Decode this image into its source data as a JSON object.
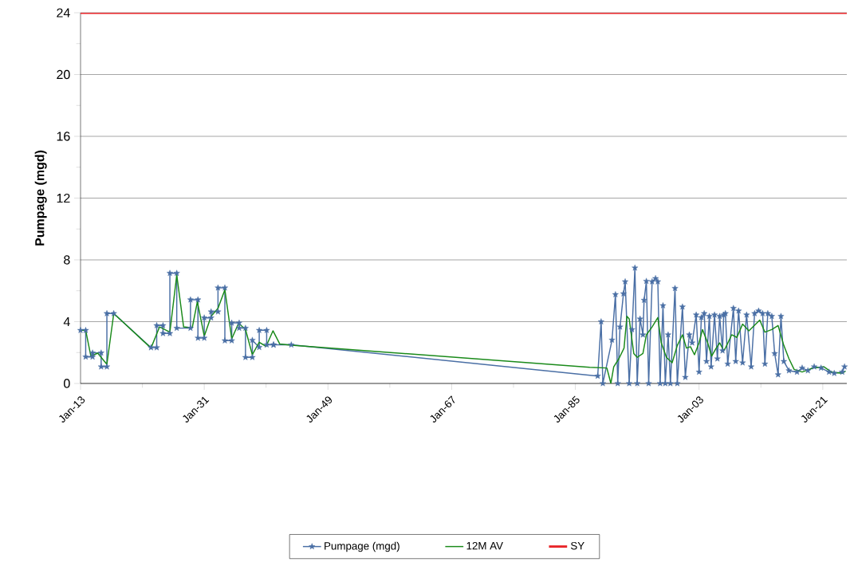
{
  "chart_data": {
    "type": "line",
    "ylabel": "Pumpage (mgd)",
    "xlim": [
      "1913-01",
      "2024-07"
    ],
    "ylim": [
      0,
      24
    ],
    "xticks": [
      {
        "value": "1913-01",
        "label": "Jan-13"
      },
      {
        "value": "1931-01",
        "label": "Jan-31"
      },
      {
        "value": "1949-01",
        "label": "Jan-49"
      },
      {
        "value": "1967-01",
        "label": "Jan-67"
      },
      {
        "value": "1985-01",
        "label": "Jan-85"
      },
      {
        "value": "2003-01",
        "label": "Jan-03"
      },
      {
        "value": "2021-01",
        "label": "Jan-21"
      }
    ],
    "yticks": [
      0,
      4,
      8,
      12,
      16,
      20,
      24
    ],
    "grid": "y",
    "legend": "bottom",
    "series": [
      {
        "name": "Pumpage (mgd)",
        "color": "#4a6fa5",
        "marker": "star",
        "x": [
          "1913-01",
          "1913-10",
          "1913-10",
          "1914-10",
          "1914-10",
          "1916-01",
          "1916-01",
          "1916-11",
          "1916-11",
          "1917-11",
          "1923-04",
          "1924-02",
          "1924-02",
          "1925-01",
          "1925-01",
          "1926-01",
          "1926-01",
          "1927-01",
          "1927-01",
          "1929-01",
          "1929-01",
          "1930-02",
          "1930-02",
          "1931-01",
          "1931-01",
          "1932-01",
          "1932-01",
          "1933-01",
          "1933-01",
          "1934-01",
          "1934-01",
          "1935-01",
          "1935-01",
          "1936-02",
          "1936-02",
          "1937-01",
          "1937-01",
          "1938-01",
          "1938-01",
          "1939-01",
          "1939-01",
          "1940-02",
          "1940-02",
          "1941-02",
          "1941-02",
          "1943-09",
          "1988-04",
          "1988-10",
          "1989-01",
          "1990-05",
          "1990-11",
          "1991-03",
          "1991-07",
          "1992-01",
          "1992-04",
          "1992-11",
          "1993-04",
          "1993-09",
          "1994-01",
          "1994-06",
          "1994-11",
          "1995-01",
          "1995-05",
          "1995-09",
          "1996-03",
          "1996-09",
          "1997-01",
          "1997-05",
          "1997-10",
          "1998-02",
          "1998-07",
          "1998-11",
          "1999-07",
          "1999-11",
          "2000-08",
          "2001-01",
          "2001-08",
          "2002-01",
          "2002-08",
          "2003-01",
          "2003-05",
          "2003-10",
          "2004-02",
          "2004-07",
          "2004-10",
          "2005-04",
          "2005-09",
          "2006-01",
          "2006-06",
          "2006-08",
          "2006-11",
          "2007-03",
          "2008-01",
          "2008-05",
          "2008-10",
          "2009-05",
          "2009-12",
          "2010-08",
          "2011-02",
          "2011-09",
          "2012-04",
          "2012-08",
          "2013-01",
          "2013-08",
          "2014-01",
          "2014-07",
          "2014-12",
          "2015-05",
          "2016-02",
          "2017-04",
          "2018-01",
          "2018-11",
          "2019-10",
          "2020-10",
          "2021-12",
          "2022-09",
          "2023-11",
          "2024-03"
        ],
        "values": [
          3.44,
          3.44,
          1.72,
          1.72,
          1.98,
          1.98,
          1.08,
          1.08,
          4.53,
          4.53,
          2.32,
          2.32,
          3.75,
          3.75,
          3.24,
          3.24,
          7.14,
          7.14,
          3.58,
          3.58,
          5.42,
          5.42,
          2.94,
          2.94,
          4.25,
          4.25,
          4.64,
          4.64,
          6.19,
          6.19,
          2.77,
          2.77,
          3.92,
          3.92,
          3.58,
          3.58,
          1.69,
          1.69,
          2.8,
          2.34,
          3.44,
          3.44,
          2.5,
          2.5,
          2.5,
          2.5,
          0.48,
          4.0,
          0,
          2.81,
          5.76,
          0,
          3.66,
          5.81,
          6.59,
          0,
          3.49,
          7.48,
          0,
          4.18,
          3.15,
          5.39,
          6.62,
          0,
          6.59,
          6.8,
          6.59,
          0,
          5.04,
          0,
          3.15,
          0,
          6.16,
          0,
          4.96,
          0.4,
          3.15,
          2.63,
          4.44,
          0.74,
          4.27,
          4.53,
          1.43,
          4.35,
          1.08,
          4.44,
          1.6,
          4.35,
          2.12,
          4.44,
          4.53,
          1.26,
          4.87,
          1.43,
          4.7,
          1.34,
          4.44,
          1.08,
          4.53,
          4.7,
          4.53,
          1.26,
          4.53,
          4.35,
          1.94,
          0.57,
          4.35,
          1.43,
          0.83,
          0.74,
          1.0,
          0.83,
          1.08,
          1.0,
          0.74,
          0.66,
          0.74,
          1.08
        ]
      },
      {
        "name": "12M AV",
        "color": "#1a8a1a",
        "marker": "none",
        "x": [
          "1913-01",
          "1913-10",
          "1914-07",
          "1915-07",
          "1916-11",
          "1917-11",
          "1923-04",
          "1924-07",
          "1926-01",
          "1927-01",
          "1928-01",
          "1929-04",
          "1930-01",
          "1931-01",
          "1932-01",
          "1933-01",
          "1934-01",
          "1935-01",
          "1936-01",
          "1937-01",
          "1938-01",
          "1939-01",
          "1940-01",
          "1941-01",
          "1942-01",
          "1943-09",
          "1987-02",
          "1989-08",
          "1990-03",
          "1990-08",
          "1991-05",
          "1992-02",
          "1992-07",
          "1992-11",
          "1993-07",
          "1994-01",
          "1994-11",
          "1995-05",
          "1996-03",
          "1997-01",
          "1997-07",
          "1998-04",
          "1999-02",
          "1999-11",
          "2000-08",
          "2001-03",
          "2001-10",
          "2002-05",
          "2003-01",
          "2003-07",
          "2004-04",
          "2004-11",
          "2005-07",
          "2006-01",
          "2006-08",
          "2006-11",
          "2007-10",
          "2008-07",
          "2009-05",
          "2010-04",
          "2011-11",
          "2012-08",
          "2013-08",
          "2014-07",
          "2015-05",
          "2016-02",
          "2016-11",
          "2018-01",
          "2019-08",
          "2021-03",
          "2022-04",
          "2023-11",
          "2024-05"
        ],
        "values": [
          3.44,
          3.44,
          1.77,
          1.96,
          1.24,
          4.53,
          2.29,
          3.66,
          3.32,
          7.02,
          3.66,
          3.6,
          5.3,
          3.06,
          4.35,
          4.87,
          6.07,
          2.89,
          3.9,
          3.5,
          1.86,
          2.67,
          2.4,
          3.41,
          2.55,
          2.48,
          1.05,
          1.0,
          0,
          1.08,
          1.6,
          2.29,
          4.35,
          4.18,
          1.94,
          1.69,
          1.94,
          3.15,
          3.66,
          4.27,
          2.63,
          1.69,
          1.34,
          2.46,
          3.15,
          2.29,
          2.38,
          1.86,
          2.63,
          3.49,
          2.63,
          1.77,
          2.29,
          2.63,
          2.12,
          2.29,
          3.15,
          2.98,
          3.84,
          3.41,
          4.1,
          3.32,
          3.49,
          3.75,
          2.46,
          1.6,
          0.91,
          0.74,
          1.0,
          1.08,
          0.74,
          0.66,
          0.8
        ]
      }
    ],
    "ref_lines": [
      {
        "axis": "y",
        "value": 24,
        "label": "SY",
        "color": "#e8262a"
      }
    ]
  }
}
